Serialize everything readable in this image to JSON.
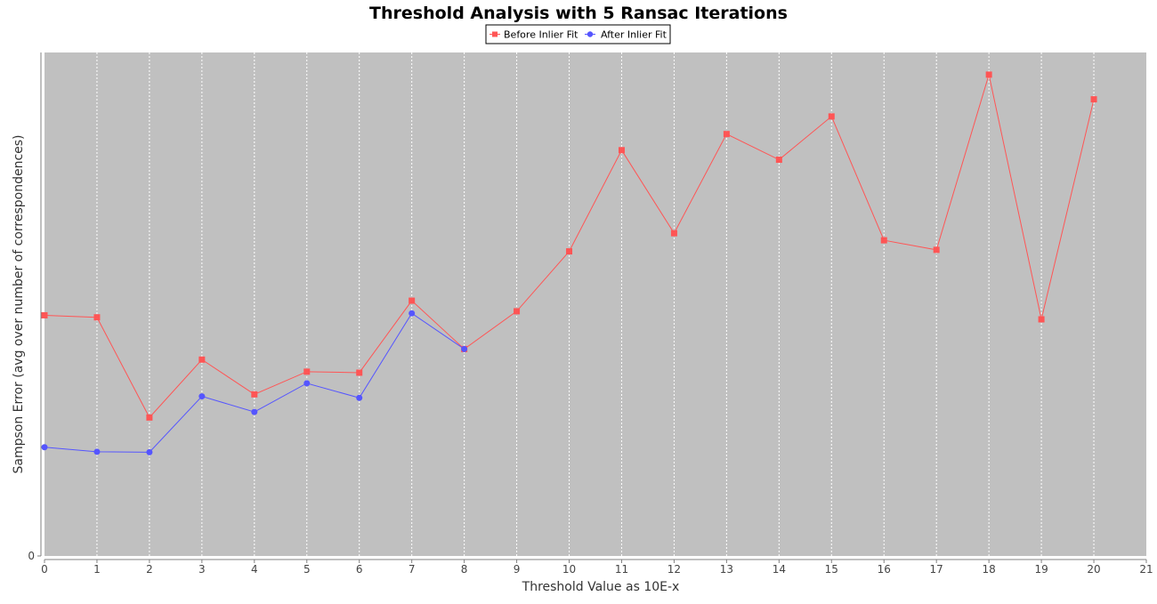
{
  "chart_data": {
    "type": "line",
    "title": "Threshold Analysis with 5 Ransac Iterations",
    "xlabel": "Threshold Value as 10E-x",
    "ylabel": "Sampson Error (avg over number of correspondences)",
    "x": [
      0,
      1,
      2,
      3,
      4,
      5,
      6,
      7,
      8,
      9,
      10,
      11,
      12,
      13,
      14,
      15,
      16,
      17,
      18,
      19,
      20
    ],
    "xlim": [
      0,
      21
    ],
    "xticks": [
      "0",
      "1",
      "2",
      "3",
      "4",
      "5",
      "6",
      "7",
      "8",
      "9",
      "10",
      "11",
      "12",
      "13",
      "14",
      "15",
      "16",
      "17",
      "18",
      "19",
      "20",
      "21"
    ],
    "ylim": [
      0,
      100
    ],
    "yticks": [
      "0"
    ],
    "grid": true,
    "legend_position": "top-center",
    "plot_background": "#c0c0c0",
    "series": [
      {
        "name": "Before Inlier Fit",
        "color": "#ff5555",
        "marker": "square",
        "x": [
          0,
          1,
          2,
          3,
          4,
          5,
          6,
          7,
          8,
          9,
          10,
          11,
          12,
          13,
          14,
          15,
          16,
          17,
          18,
          19,
          20
        ],
        "values": [
          47.8,
          47.4,
          27.5,
          39.0,
          32.1,
          36.6,
          36.4,
          50.7,
          41.1,
          48.6,
          60.5,
          80.6,
          64.1,
          83.8,
          78.7,
          87.3,
          62.7,
          60.8,
          95.6,
          47.0,
          90.7
        ]
      },
      {
        "name": "After Inlier Fit",
        "color": "#5555ff",
        "marker": "circle",
        "x": [
          0,
          1,
          2,
          3,
          4,
          5,
          6,
          7,
          8
        ],
        "values": [
          21.6,
          20.7,
          20.6,
          31.7,
          28.6,
          34.3,
          31.4,
          48.2,
          41.1
        ]
      }
    ]
  }
}
